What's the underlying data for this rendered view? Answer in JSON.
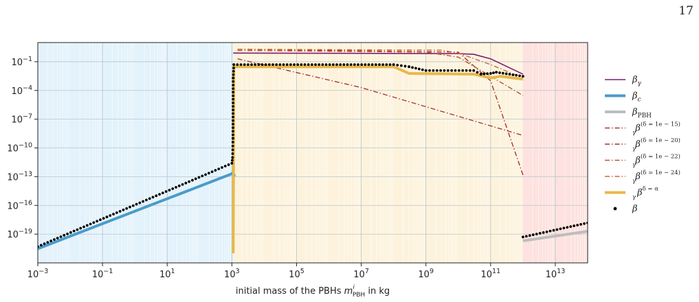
{
  "page": {
    "number": "17"
  },
  "chart_data": {
    "type": "line",
    "xscale": "log",
    "yscale": "log",
    "xlabel": "initial mass of the PBHs m_PBH^i in kg",
    "ylabel": "",
    "xlim": [
      0.001,
      100000000000000.0
    ],
    "ylim": [
      1e-22,
      10
    ],
    "grid": true,
    "legend_position": "right",
    "x_ticks": [
      {
        "value": 0.001,
        "base": "10",
        "exp": "−3"
      },
      {
        "value": 0.1,
        "base": "10",
        "exp": "−1"
      },
      {
        "value": 10,
        "base": "10",
        "exp": "1"
      },
      {
        "value": 1000,
        "base": "10",
        "exp": "3"
      },
      {
        "value": 100000,
        "base": "10",
        "exp": "5"
      },
      {
        "value": 10000000,
        "base": "10",
        "exp": "7"
      },
      {
        "value": 1000000000,
        "base": "10",
        "exp": "9"
      },
      {
        "value": 100000000000,
        "base": "10",
        "exp": "11"
      },
      {
        "value": 10000000000000,
        "base": "10",
        "exp": "13"
      }
    ],
    "y_ticks": [
      {
        "value": 1e-19,
        "base": "10",
        "exp": "−19"
      },
      {
        "value": 1e-16,
        "base": "10",
        "exp": "−16"
      },
      {
        "value": 1e-13,
        "base": "10",
        "exp": "−13"
      },
      {
        "value": 1e-10,
        "base": "10",
        "exp": "−10"
      },
      {
        "value": 1e-07,
        "base": "10",
        "exp": "−7"
      },
      {
        "value": 0.0001,
        "base": "10",
        "exp": "−4"
      },
      {
        "value": 0.1,
        "base": "10",
        "exp": "−1"
      }
    ],
    "regions": [
      {
        "x0": 0.001,
        "x1": 1100,
        "color": "#e3f2fb"
      },
      {
        "x0": 1100,
        "x1": 1000000000000.0,
        "color": "#fdf3dd"
      },
      {
        "x0": 1000000000000.0,
        "x1": 100000000000000.0,
        "color": "#fde2df"
      }
    ],
    "series": [
      {
        "name": "β_γ",
        "color": "#7b1a72",
        "style": "solid",
        "points": [
          [
            1100,
            0.8
          ],
          [
            10000000000.0,
            0.7
          ],
          [
            30000000000.0,
            0.6
          ],
          [
            100000000000.0,
            0.2
          ],
          [
            1000000000000.0,
            0.005
          ]
        ]
      },
      {
        "name": "β_c",
        "color": "#4a9bc9",
        "style": "thick",
        "points": [
          [
            0.001,
            3e-21
          ],
          [
            1000,
            2e-13
          ],
          [
            1100,
            3e-13
          ],
          [
            1200,
            1e-13
          ]
        ]
      },
      {
        "name": "β_PBH",
        "color": "#bdbdbd",
        "style": "thick",
        "points": [
          [
            1000000000000.0,
            2e-20
          ],
          [
            100000000000000.0,
            2e-19
          ]
        ]
      },
      {
        "name": "β_γ^(δ=1e−15)",
        "color": "#a83232",
        "style": "dashdot",
        "points": [
          [
            1500,
            0.2
          ],
          [
            10000000.0,
            0.0002
          ],
          [
            10000000000.0,
            2e-07
          ],
          [
            1000000000000.0,
            2e-09
          ]
        ]
      },
      {
        "name": "β_γ^(δ=1e−20)",
        "color": "#a83232",
        "style": "dashdot",
        "points": [
          [
            1500,
            2.0
          ],
          [
            10000000000.0,
            1.0
          ],
          [
            100000000000.0,
            0.001
          ],
          [
            1000000000000.0,
            1.5e-13
          ]
        ]
      },
      {
        "name": "β_γ^(δ=1e−22)",
        "color": "#b5522f",
        "style": "dashdot",
        "points": [
          [
            1500,
            1.5
          ],
          [
            1000000000.0,
            1.0
          ],
          [
            10000000000.0,
            0.3
          ],
          [
            100000000000.0,
            0.003
          ],
          [
            1000000000000.0,
            3e-05
          ]
        ]
      },
      {
        "name": "β_γ^(δ=1e−24)",
        "color": "#c06a3a",
        "style": "dashdot",
        "points": [
          [
            1500,
            2.0
          ],
          [
            3000000000.0,
            1.6
          ],
          [
            10000000000.0,
            0.8
          ],
          [
            100000000000.0,
            0.05
          ],
          [
            1000000000000.0,
            0.002
          ]
        ]
      },
      {
        "name": "β_γ^(δ=α_γ)",
        "color": "#e8b84a",
        "style": "thick",
        "points": [
          [
            1100,
            1e-21
          ],
          [
            1150,
            0.03
          ],
          [
            100000000.0,
            0.03
          ],
          [
            300000000.0,
            0.006
          ],
          [
            30000000000.0,
            0.005
          ],
          [
            100000000000.0,
            0.002
          ],
          [
            200000000000.0,
            0.003
          ],
          [
            1000000000000.0,
            0.0015
          ]
        ]
      },
      {
        "name": "β",
        "color": "#000000",
        "style": "dots",
        "points": [
          [
            0.001,
            5e-21
          ],
          [
            1000,
            2.5e-12
          ],
          [
            1050,
            1e-11
          ],
          [
            1080,
            1e-09
          ],
          [
            1100,
            0.002
          ],
          [
            1150,
            0.05
          ],
          [
            100000000.0,
            0.05
          ],
          [
            300000000.0,
            0.03
          ],
          [
            1000000000.0,
            0.012
          ],
          [
            30000000000.0,
            0.012
          ],
          [
            50000000000.0,
            0.005
          ],
          [
            100000000000.0,
            0.006
          ],
          [
            150000000000.0,
            0.008
          ],
          [
            1000000000000.0,
            0.003
          ],
          [
            1000000000000.0,
            5e-20
          ],
          [
            100000000000000.0,
            1.5e-18
          ]
        ]
      }
    ]
  }
}
